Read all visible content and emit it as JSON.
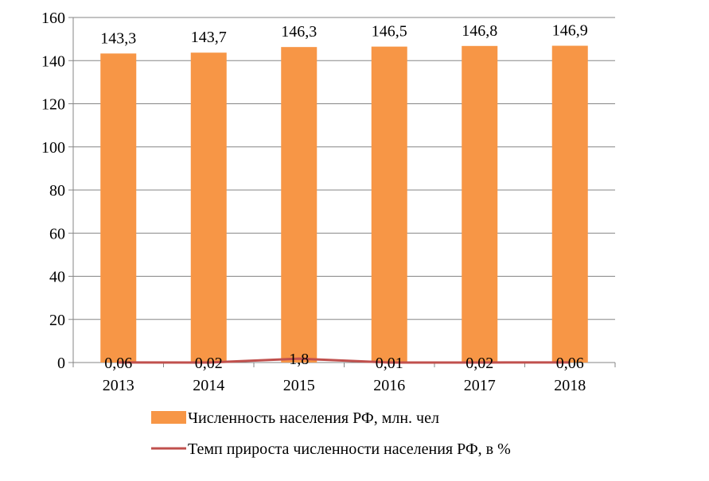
{
  "chart_data": {
    "type": "bar",
    "categories": [
      "2013",
      "2014",
      "2015",
      "2016",
      "2017",
      "2018"
    ],
    "series": [
      {
        "name": "Численность населения РФ, млн. чел",
        "type": "bar",
        "values": [
          143.3,
          143.7,
          146.3,
          146.5,
          146.8,
          146.9
        ],
        "labels": [
          "143,3",
          "143,7",
          "146,3",
          "146,5",
          "146,8",
          "146,9"
        ],
        "color": "#F79646"
      },
      {
        "name": "Темп прироста численности населения РФ, в %",
        "type": "line",
        "values": [
          0.06,
          0.02,
          1.8,
          0.01,
          0.02,
          0.06
        ],
        "labels": [
          "0,06",
          "0,02",
          "1,8",
          "0,01",
          "0,02",
          "0,06"
        ],
        "color": "#C0504D"
      }
    ],
    "y_ticks": [
      "0",
      "20",
      "40",
      "60",
      "80",
      "100",
      "120",
      "140",
      "160"
    ],
    "ylim": [
      0,
      160
    ],
    "grid": true,
    "legend_position": "bottom"
  }
}
